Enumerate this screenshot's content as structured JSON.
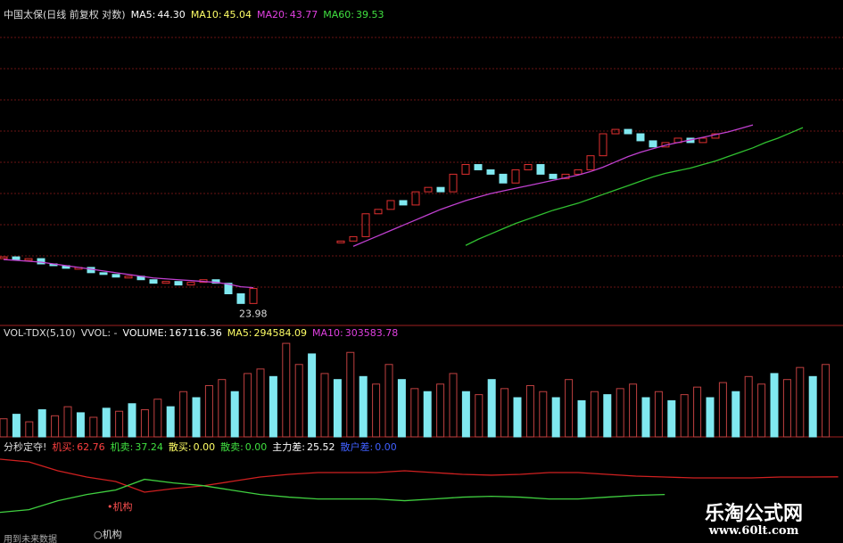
{
  "price_panel": {
    "title": "中国太保(日线 前复权 对数)",
    "indicators": [
      {
        "label": "MA5:",
        "value": "44.30",
        "color": "#ffffff"
      },
      {
        "label": "MA10:",
        "value": "45.04",
        "color": "#ffff66"
      },
      {
        "label": "MA20:",
        "value": "43.77",
        "color": "#e040e0"
      },
      {
        "label": "MA60:",
        "value": "39.53",
        "color": "#40e040"
      }
    ],
    "ylim": [
      22,
      58
    ],
    "closes": [
      29.8,
      29.5,
      29.6,
      29.0,
      28.8,
      28.5,
      28.6,
      28.0,
      27.8,
      27.5,
      27.6,
      27.2,
      26.8,
      27.0,
      26.6,
      26.9,
      27.2,
      26.8,
      25.6,
      24.5,
      26.2,
      null,
      null,
      null,
      null,
      null,
      null,
      31.6,
      32.1,
      34.7,
      35.2,
      36.2,
      35.7,
      37.2,
      37.7,
      37.2,
      39.2,
      40.3,
      39.7,
      39.2,
      38.2,
      39.7,
      40.3,
      39.2,
      38.7,
      39.2,
      39.7,
      41.3,
      43.8,
      44.3,
      43.8,
      43.0,
      42.3,
      42.8,
      43.3,
      42.8,
      43.3,
      43.8,
      null,
      null,
      null,
      null,
      null,
      null,
      null
    ],
    "ma20": [
      29.5,
      29.4,
      29.3,
      29.2,
      29.0,
      28.8,
      28.6,
      28.4,
      28.2,
      28.0,
      27.8,
      27.6,
      27.4,
      27.3,
      27.2,
      27.1,
      27.0,
      26.9,
      26.7,
      26.4,
      26.3,
      null,
      null,
      null,
      null,
      null,
      null,
      null,
      31.0,
      31.6,
      32.2,
      32.8,
      33.4,
      34.0,
      34.6,
      35.2,
      35.7,
      36.2,
      36.6,
      37.0,
      37.3,
      37.6,
      37.9,
      38.2,
      38.5,
      38.8,
      39.1,
      39.5,
      40.0,
      40.6,
      41.2,
      41.7,
      42.1,
      42.5,
      42.8,
      43.1,
      43.4,
      43.7,
      44.0,
      44.4,
      44.8,
      null,
      null,
      null,
      null
    ],
    "ma60": [
      null,
      null,
      null,
      null,
      null,
      null,
      null,
      null,
      null,
      null,
      null,
      null,
      null,
      null,
      null,
      null,
      null,
      null,
      null,
      null,
      null,
      null,
      null,
      null,
      null,
      null,
      null,
      null,
      null,
      null,
      null,
      null,
      null,
      null,
      null,
      null,
      null,
      31.1,
      31.8,
      32.4,
      33.0,
      33.6,
      34.1,
      34.6,
      35.1,
      35.5,
      35.9,
      36.4,
      36.9,
      37.4,
      37.9,
      38.4,
      38.9,
      39.3,
      39.6,
      39.9,
      40.3,
      40.7,
      41.2,
      41.7,
      42.2,
      42.8,
      43.3,
      43.9,
      44.5
    ],
    "ma20_color": "#c040d0",
    "ma60_color": "#30c030",
    "low_label": "23.98"
  },
  "volume_panel": {
    "title": "VOL-TDX(5,10)",
    "subtitle": "VVOL: -",
    "indicators": [
      {
        "label": "VOLUME:",
        "value": "167116.36",
        "color": "#ffffff"
      },
      {
        "label": "MA5:",
        "value": "294584.09",
        "color": "#ffff66"
      },
      {
        "label": "MA10:",
        "value": "303583.78",
        "color": "#e040e0"
      }
    ],
    "ylim": [
      0,
      650000
    ],
    "values": [
      120000,
      150000,
      100000,
      180000,
      140000,
      200000,
      160000,
      130000,
      190000,
      170000,
      220000,
      180000,
      250000,
      200000,
      300000,
      260000,
      340000,
      380000,
      300000,
      420000,
      450000,
      400000,
      620000,
      480000,
      550000,
      420000,
      380000,
      560000,
      400000,
      350000,
      480000,
      380000,
      320000,
      300000,
      350000,
      420000,
      300000,
      280000,
      380000,
      320000,
      260000,
      340000,
      300000,
      260000,
      380000,
      240000,
      300000,
      280000,
      320000,
      350000,
      260000,
      300000,
      240000,
      280000,
      330000,
      260000,
      360000,
      300000,
      400000,
      350000,
      420000,
      380000,
      460000,
      400000,
      480000
    ],
    "up": [
      true,
      false,
      true,
      false,
      true,
      true,
      false,
      true,
      false,
      true,
      false,
      true,
      true,
      false,
      true,
      false,
      true,
      true,
      false,
      true,
      true,
      false,
      true,
      true,
      false,
      true,
      false,
      true,
      false,
      true,
      true,
      false,
      true,
      false,
      true,
      true,
      false,
      true,
      false,
      true,
      false,
      true,
      true,
      false,
      true,
      false,
      true,
      false,
      true,
      true,
      false,
      true,
      false,
      true,
      true,
      false,
      true,
      false,
      true,
      true,
      false,
      true,
      true,
      false,
      true
    ],
    "up_color": "#c04040",
    "down_color": "#80e8f0"
  },
  "signal_panel": {
    "title": "分秒定夺!",
    "indicators": [
      {
        "label": "机买:",
        "value": "62.76",
        "color": "#ff4040"
      },
      {
        "label": "机卖:",
        "value": "37.24",
        "color": "#40e040"
      },
      {
        "label": "散买:",
        "value": "0.00",
        "color": "#ffff66"
      },
      {
        "label": "散卖:",
        "value": "0.00",
        "color": "#40e040"
      },
      {
        "label": "主力差:",
        "value": "25.52",
        "color": "#ffffff"
      },
      {
        "label": "散户差:",
        "value": "0.00",
        "color": "#4060ff"
      }
    ],
    "ylim": [
      0,
      100
    ],
    "buy": [
      88,
      84.2,
      71.4,
      62.5,
      56.1,
      40.8,
      45.9,
      49.7,
      56.1,
      62.5,
      66.3,
      68.9,
      68.9,
      68.9,
      71.4,
      68.9,
      66.3,
      65.1,
      66.3,
      68.9,
      68.9,
      66.3,
      63.8,
      62.5,
      61.2,
      61.2,
      61.2,
      62.5,
      62.5,
      62.76
    ],
    "sell": [
      12,
      15.8,
      28.6,
      37.5,
      43.9,
      59.2,
      54.1,
      50.3,
      43.9,
      37.5,
      33.7,
      31.1,
      31.1,
      31.1,
      28.6,
      31.1,
      33.7,
      34.9,
      33.7,
      31.1,
      31.1,
      33.7,
      36.2,
      37.5,
      null,
      null,
      null,
      null,
      null,
      null
    ],
    "buy_color": "#d02020",
    "sell_color": "#40d040",
    "marker_label": "•机构",
    "bottom_label": "○机构",
    "footer": "用到未来数据"
  },
  "watermark": {
    "name": "乐淘公式网",
    "url": "www.60lt.com"
  }
}
